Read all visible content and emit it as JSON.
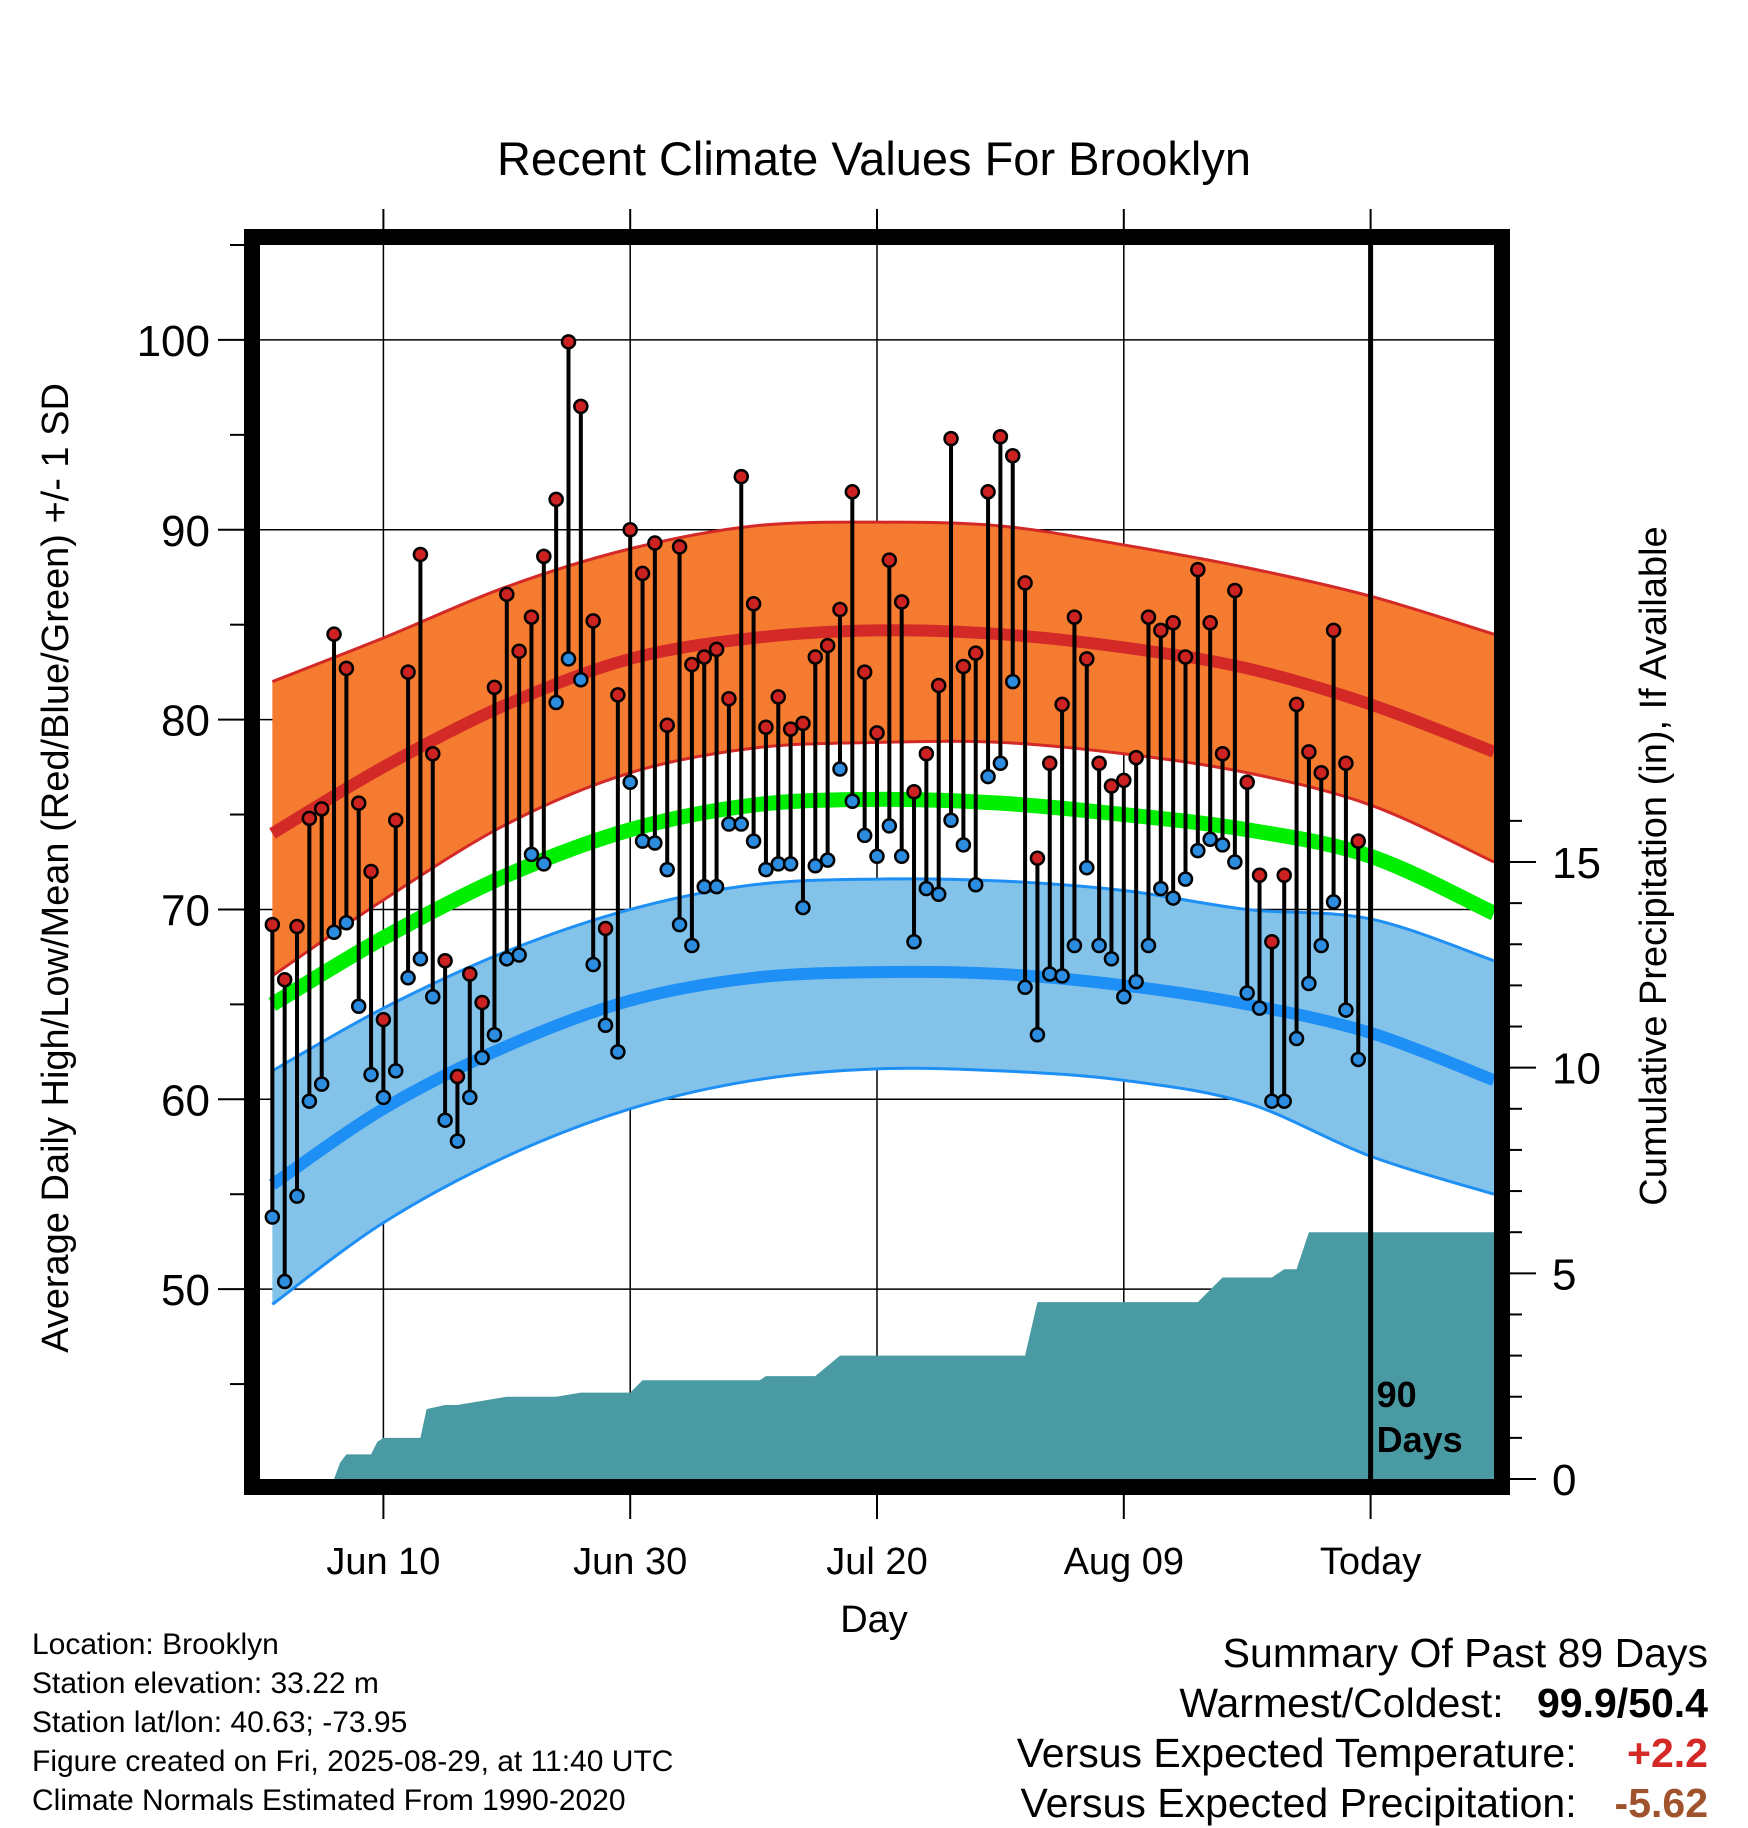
{
  "chart_data": {
    "type": "line",
    "title": "Recent Climate Values For Brooklyn",
    "xlabel": "Day",
    "ylabel": "Average Daily High/Low/Mean (Red/Blue/Green) +/- 1 SD",
    "y2label": "Cumulative Precipitation (in), If Available",
    "x_ticks": [
      "Jun 10",
      "Jun 30",
      "Jul 20",
      "Aug 09",
      "Today"
    ],
    "x_tick_day_index": [
      10,
      30,
      50,
      70,
      90
    ],
    "x_range_day_index": [
      0,
      100
    ],
    "ylim": [
      40,
      105
    ],
    "y_ticks": [
      50,
      60,
      70,
      80,
      90,
      100
    ],
    "y2lim": [
      0,
      30
    ],
    "y2_ticks": [
      0,
      5,
      10,
      15
    ],
    "grid": true,
    "today_marker": {
      "day_index": 90,
      "label_line1": "90",
      "label_line2": "Days"
    },
    "colors": {
      "high_band": "#f47b30",
      "high_line": "#d42a27",
      "high_edge": "#d42a27",
      "low_band": "#84c3e9",
      "low_line": "#1e8ff5",
      "low_edge": "#1e8ff5",
      "mean_line": "#00ee00",
      "precip": "#4a9aa3",
      "high_point": "#cc2222",
      "low_point": "#2b8ce0"
    },
    "normals": {
      "day_index": [
        1,
        10,
        20,
        30,
        40,
        50,
        60,
        70,
        80,
        90,
        100
      ],
      "high_mean": [
        74.0,
        77.5,
        80.8,
        83.2,
        84.3,
        84.7,
        84.5,
        83.8,
        82.7,
        80.8,
        78.3
      ],
      "high_plus_sd": [
        82.0,
        84.3,
        87.0,
        89.0,
        90.2,
        90.4,
        90.2,
        89.2,
        88.0,
        86.5,
        84.5
      ],
      "high_minus_sd": [
        66.5,
        70.5,
        74.5,
        77.2,
        78.5,
        78.8,
        78.8,
        78.2,
        77.2,
        75.5,
        72.5
      ],
      "mean": [
        65.0,
        68.5,
        71.8,
        74.2,
        75.5,
        75.8,
        75.6,
        75.0,
        74.2,
        72.8,
        69.8
      ],
      "low_mean": [
        55.5,
        59.5,
        62.8,
        65.2,
        66.4,
        66.7,
        66.6,
        66.0,
        65.0,
        63.5,
        61.0
      ],
      "low_plus_sd": [
        61.5,
        64.8,
        67.8,
        70.0,
        71.3,
        71.6,
        71.5,
        71.0,
        70.0,
        69.5,
        67.3
      ],
      "low_minus_sd": [
        49.2,
        53.5,
        57.0,
        59.5,
        61.0,
        61.6,
        61.5,
        61.0,
        59.8,
        57.0,
        55.0
      ]
    },
    "daily": {
      "day_index": [
        1,
        2,
        3,
        4,
        5,
        6,
        7,
        8,
        9,
        10,
        11,
        12,
        13,
        14,
        15,
        16,
        17,
        18,
        19,
        20,
        21,
        22,
        23,
        24,
        25,
        26,
        27,
        28,
        29,
        30,
        31,
        32,
        33,
        34,
        35,
        36,
        37,
        38,
        39,
        40,
        41,
        42,
        43,
        44,
        45,
        46,
        47,
        48,
        49,
        50,
        51,
        52,
        53,
        54,
        55,
        56,
        57,
        58,
        59,
        60,
        61,
        62,
        63,
        64,
        65,
        66,
        67,
        68,
        69,
        70,
        71,
        72,
        73,
        74,
        75,
        76,
        77,
        78,
        79,
        80,
        81,
        82,
        83,
        84,
        85,
        86,
        87,
        88,
        89
      ],
      "high": [
        69.2,
        66.3,
        69.1,
        74.8,
        75.3,
        84.5,
        82.7,
        75.6,
        72.0,
        64.2,
        74.7,
        82.5,
        88.7,
        78.2,
        67.3,
        61.2,
        66.6,
        65.1,
        81.7,
        86.6,
        83.6,
        85.4,
        88.6,
        91.6,
        99.9,
        96.5,
        85.2,
        69.0,
        81.3,
        90.0,
        87.7,
        89.3,
        79.7,
        89.1,
        82.9,
        83.3,
        83.7,
        81.1,
        92.8,
        86.1,
        79.6,
        81.2,
        79.5,
        79.8,
        83.3,
        83.9,
        85.8,
        92.0,
        82.5,
        79.3,
        88.4,
        86.2,
        76.2,
        78.2,
        81.8,
        94.8,
        82.8,
        83.5,
        92.0,
        94.9,
        93.9,
        87.2,
        72.7,
        77.7,
        80.8,
        85.4,
        83.2,
        77.7,
        76.5,
        76.8,
        78.0,
        85.4,
        84.7,
        85.1,
        83.3,
        87.9,
        85.1,
        78.2,
        86.8,
        76.7,
        71.8,
        68.3,
        71.8,
        80.8,
        78.3,
        77.2,
        84.7,
        77.7,
        73.6
      ],
      "low": [
        53.8,
        50.4,
        54.9,
        59.9,
        60.8,
        68.8,
        69.3,
        64.9,
        61.3,
        60.1,
        61.5,
        66.4,
        67.4,
        65.4,
        58.9,
        57.8,
        60.1,
        62.2,
        63.4,
        67.4,
        67.6,
        72.9,
        72.4,
        80.9,
        83.2,
        82.1,
        67.1,
        63.9,
        62.5,
        76.7,
        73.6,
        73.5,
        72.1,
        69.2,
        68.1,
        71.2,
        71.2,
        74.5,
        74.5,
        73.6,
        72.1,
        72.4,
        72.4,
        70.1,
        72.3,
        72.6,
        77.4,
        75.7,
        73.9,
        72.8,
        74.4,
        72.8,
        68.3,
        71.1,
        70.8,
        74.7,
        73.4,
        71.3,
        77.0,
        77.7,
        82.0,
        65.9,
        63.4,
        66.6,
        66.5,
        68.1,
        72.2,
        68.1,
        67.4,
        65.4,
        66.2,
        68.1,
        71.1,
        70.6,
        71.6,
        73.1,
        73.7,
        73.4,
        72.5,
        65.6,
        64.8,
        59.9,
        59.9,
        63.2,
        66.1,
        68.1,
        70.4,
        64.7,
        62.1
      ]
    },
    "precip_cumulative": {
      "day_index": [
        0,
        6,
        6.5,
        7,
        9,
        9.5,
        10,
        12,
        13,
        13.5,
        15,
        16,
        18,
        20,
        21,
        23,
        24,
        26,
        30,
        31,
        35,
        36,
        40,
        40.5,
        41,
        42,
        43,
        44,
        45,
        47,
        48,
        49,
        55,
        56,
        59,
        60,
        61,
        62,
        63,
        64,
        66,
        67,
        70,
        71,
        72,
        73,
        74,
        75,
        76,
        77,
        78,
        79,
        80,
        81,
        82,
        83,
        84,
        85,
        86,
        90,
        100
      ],
      "inches": [
        0,
        0,
        0.4,
        0.6,
        0.6,
        0.9,
        1.0,
        1.0,
        1.0,
        1.7,
        1.8,
        1.8,
        1.9,
        2.0,
        2.0,
        2.0,
        2.0,
        2.1,
        2.1,
        2.4,
        2.4,
        2.4,
        2.4,
        2.4,
        2.5,
        2.5,
        2.5,
        2.5,
        2.5,
        3.0,
        3.0,
        3.0,
        3.0,
        3.0,
        3.0,
        3.0,
        3.0,
        3.0,
        4.3,
        4.3,
        4.3,
        4.3,
        4.3,
        4.3,
        4.3,
        4.3,
        4.3,
        4.3,
        4.3,
        4.6,
        4.9,
        4.9,
        4.9,
        4.9,
        4.9,
        5.1,
        5.1,
        6.0,
        6.0,
        6.0,
        6.0
      ]
    }
  },
  "footer": {
    "location": "Location: Brooklyn",
    "elevation": "Station elevation: 33.22 m",
    "latlon": "Station lat/lon: 40.63; -73.95",
    "created": "Figure created on Fri, 2025-08-29, at 11:40 UTC",
    "normals": "Climate Normals Estimated From 1990-2020"
  },
  "summary": {
    "heading": "Summary Of Past 89 Days",
    "warm_cold_label": "Warmest/Coldest:",
    "warm_cold_value": "99.9/50.4",
    "temp_label": "Versus Expected Temperature:",
    "temp_value": "+2.2",
    "temp_color": "#d42a27",
    "precip_label": "Versus Expected Precipitation:",
    "precip_value": "-5.62",
    "precip_color": "#a0522d"
  }
}
